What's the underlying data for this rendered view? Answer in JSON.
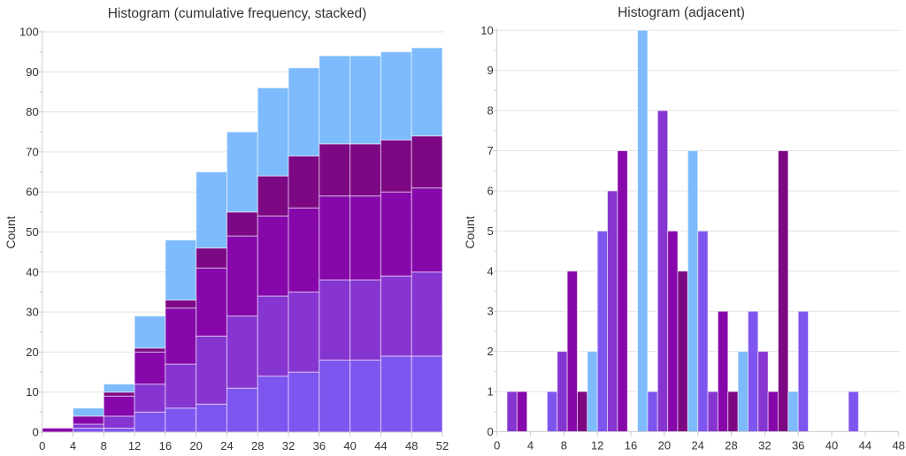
{
  "chart_data": [
    {
      "type": "bar",
      "variant": "stacked cumulative histogram",
      "title": "Histogram (cumulative frequency, stacked)",
      "xlabel": "",
      "ylabel": "Count",
      "xlim": [
        0,
        52
      ],
      "ylim": [
        0,
        100
      ],
      "grid": true,
      "legend": "none",
      "x_ticks": [
        "0",
        "4",
        "8",
        "12",
        "16",
        "20",
        "24",
        "28",
        "32",
        "36",
        "40",
        "44",
        "48",
        "52"
      ],
      "y_ticks": [
        "0",
        "10",
        "20",
        "30",
        "40",
        "50",
        "60",
        "70",
        "80",
        "90",
        "100"
      ],
      "bin_edges": [
        0,
        4,
        8,
        12,
        16,
        20,
        24,
        28,
        32,
        36,
        40,
        44,
        48,
        52
      ],
      "series": [
        {
          "color": "#7B50F0",
          "values": [
            0,
            1,
            1,
            5,
            6,
            7,
            11,
            14,
            15,
            18,
            18,
            19,
            19
          ]
        },
        {
          "color": "#822ECF",
          "values": [
            0,
            1,
            3,
            7,
            11,
            17,
            18,
            20,
            20,
            20,
            20,
            20,
            21
          ]
        },
        {
          "color": "#8200A8",
          "values": [
            1,
            2,
            5,
            8,
            14,
            17,
            20,
            20,
            21,
            21,
            21,
            21,
            21
          ]
        },
        {
          "color": "#780080",
          "values": [
            0,
            0,
            1,
            1,
            2,
            5,
            6,
            10,
            13,
            13,
            13,
            13,
            13
          ]
        },
        {
          "color": "#6FB4FC",
          "values": [
            0,
            2,
            2,
            8,
            15,
            19,
            20,
            22,
            22,
            22,
            22,
            22,
            22
          ]
        }
      ],
      "totals": [
        1,
        6,
        12,
        29,
        48,
        65,
        75,
        86,
        91,
        94,
        94,
        95,
        96
      ]
    },
    {
      "type": "bar",
      "variant": "adjacent (grouped) histogram",
      "title": "Histogram (adjacent)",
      "xlabel": "",
      "ylabel": "Count",
      "xlim": [
        0,
        48
      ],
      "ylim": [
        0,
        10
      ],
      "grid": true,
      "legend": "none",
      "x_ticks": [
        "0",
        "4",
        "8",
        "12",
        "16",
        "20",
        "24",
        "28",
        "32",
        "36",
        "40",
        "44",
        "48"
      ],
      "y_ticks": [
        "0",
        "1",
        "2",
        "3",
        "4",
        "5",
        "6",
        "7",
        "8",
        "9",
        "10"
      ],
      "bin_edges": [
        0,
        6,
        12,
        18,
        24,
        30,
        36,
        42,
        48
      ],
      "series": [
        {
          "color": "#7B50F0",
          "values": [
            0,
            1,
            5,
            1,
            5,
            3,
            3,
            1
          ]
        },
        {
          "color": "#822ECF",
          "values": [
            1,
            2,
            6,
            8,
            1,
            2,
            0,
            0
          ]
        },
        {
          "color": "#8200A8",
          "values": [
            1,
            4,
            7,
            5,
            3,
            1,
            0,
            0
          ]
        },
        {
          "color": "#780080",
          "values": [
            0,
            1,
            0,
            4,
            1,
            7,
            0,
            0
          ]
        },
        {
          "color": "#6FB4FC",
          "values": [
            0,
            2,
            10,
            7,
            2,
            1,
            0,
            0
          ]
        }
      ]
    }
  ]
}
